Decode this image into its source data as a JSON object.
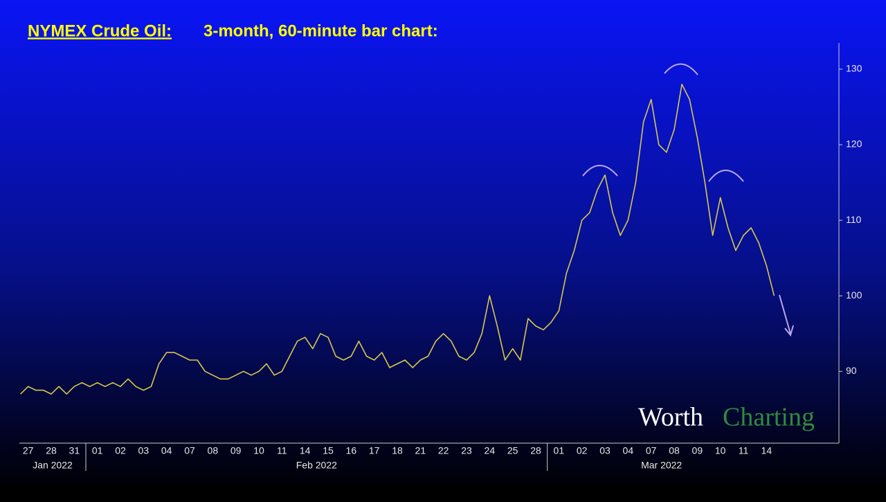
{
  "chart_data": {
    "type": "line",
    "title": "NYMEX Crude Oil:",
    "subtitle": "3-month, 60-minute bar chart:",
    "watermark": [
      "Worth",
      "Charting"
    ],
    "categories": [
      null,
      "27",
      null,
      null,
      "28",
      null,
      null,
      "31",
      null,
      null,
      "01",
      null,
      null,
      "02",
      null,
      null,
      "03",
      null,
      null,
      "04",
      null,
      null,
      "07",
      null,
      null,
      "08",
      null,
      null,
      "09",
      null,
      null,
      "10",
      null,
      null,
      "11",
      null,
      null,
      "14",
      null,
      null,
      "15",
      null,
      null,
      "16",
      null,
      null,
      "17",
      null,
      null,
      "18",
      null,
      null,
      "21",
      null,
      null,
      "22",
      null,
      null,
      "23",
      null,
      null,
      "24",
      null,
      null,
      "25",
      null,
      null,
      "28",
      null,
      null,
      "01",
      null,
      null,
      "02",
      null,
      null,
      "03",
      null,
      null,
      "04",
      null,
      null,
      "07",
      null,
      null,
      "08",
      null,
      null,
      "09",
      null,
      null,
      "10",
      null,
      null,
      "11",
      null,
      null,
      "14",
      null
    ],
    "month_labels": [
      "Jan 2022",
      "Feb 2022",
      "Mar 2022"
    ],
    "color": "#d8c94a",
    "values": [
      87,
      88,
      87.5,
      87.5,
      87,
      88,
      87,
      88,
      88.5,
      88,
      88.5,
      88,
      88.5,
      88,
      89,
      88,
      87.5,
      88,
      91,
      92.5,
      92.5,
      92,
      91.5,
      91.5,
      90,
      89.5,
      89,
      89,
      89.5,
      90,
      89.5,
      90,
      91,
      89.5,
      90,
      92,
      94,
      94.5,
      93,
      95,
      94.5,
      92,
      91.5,
      92,
      94,
      92,
      91.5,
      92.5,
      90.5,
      91,
      91.5,
      90.5,
      91.5,
      92,
      94,
      95,
      94,
      92,
      91.5,
      92.5,
      95,
      100,
      96,
      91.5,
      93,
      91.5,
      97,
      96,
      95.5,
      96.5,
      98,
      103,
      106,
      110,
      111,
      114,
      116,
      111,
      108,
      110,
      115,
      123,
      126,
      120,
      119,
      122,
      128,
      126,
      121,
      115,
      108,
      113,
      109,
      106,
      108,
      109,
      107,
      104,
      100
    ],
    "ylim": [
      80.5,
      133.2
    ],
    "yticks": [
      90,
      100,
      110,
      120,
      130
    ]
  }
}
